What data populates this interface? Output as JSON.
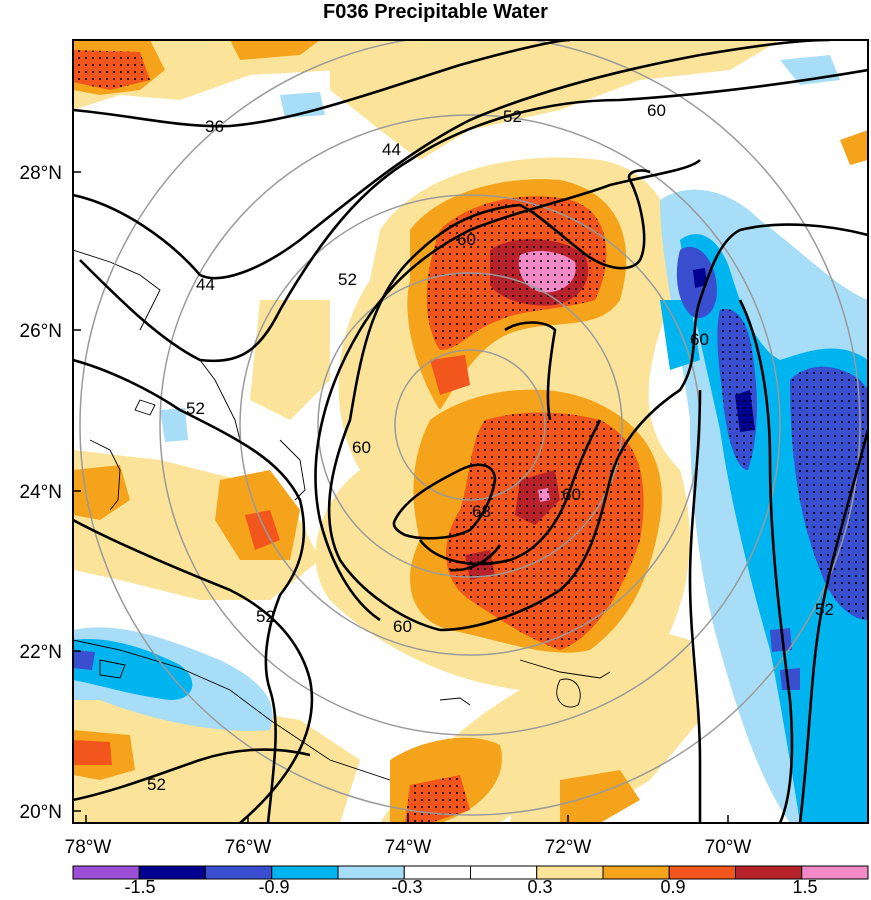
{
  "title": "F036 Precipitable Water",
  "map": {
    "lat_ticks": [
      "28°N",
      "26°N",
      "24°N",
      "22°N",
      "20°N"
    ],
    "lon_ticks": [
      "78°W",
      "76°W",
      "74°W",
      "72°W",
      "70°W"
    ],
    "contour_labels": [
      "36",
      "44",
      "44",
      "52",
      "52",
      "52",
      "52",
      "52",
      "52",
      "60",
      "60",
      "60",
      "60",
      "60",
      "60",
      "68"
    ]
  },
  "colorbar": {
    "labels": [
      "-1.5",
      "-0.9",
      "-0.3",
      "0.3",
      "0.9",
      "1.5"
    ],
    "colors": [
      "#9c4fd6",
      "#00008f",
      "#3a4fd0",
      "#00b4f0",
      "#a8ddf7",
      "#ffffff",
      "#ffffff",
      "#fbe49a",
      "#f5a31a",
      "#f2561d",
      "#b8222a",
      "#f28ac8"
    ]
  }
}
